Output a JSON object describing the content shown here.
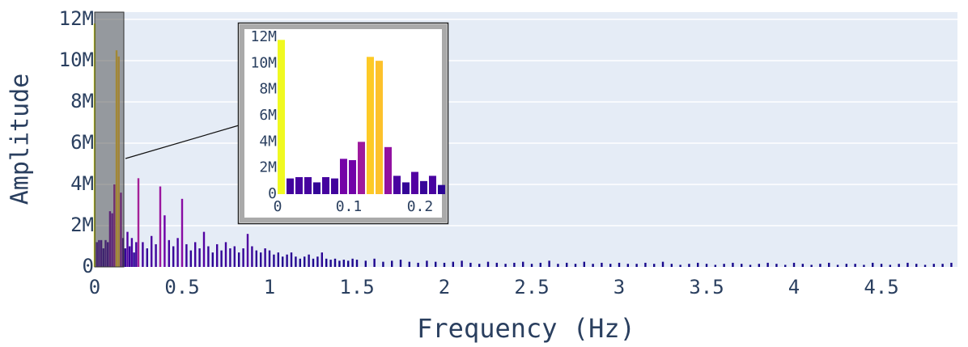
{
  "chart_data": [
    {
      "type": "bar",
      "xlabel": "Frequency (Hz)",
      "ylabel": "Amplitude",
      "colorscale": [
        "#0d0887",
        "#46039f",
        "#7201a8",
        "#9c179e",
        "#bd3786",
        "#d8576b",
        "#ed7953",
        "#fb9f3a",
        "#fdca26",
        "#f0f921"
      ],
      "x": [
        0,
        0.0125,
        0.025,
        0.0375,
        0.05,
        0.0625,
        0.075,
        0.0875,
        0.1,
        0.1125,
        0.125,
        0.1375,
        0.15,
        0.1625,
        0.175,
        0.1875,
        0.2,
        0.2125,
        0.225,
        0.2375,
        0.25,
        0.275,
        0.3,
        0.325,
        0.35,
        0.375,
        0.4,
        0.425,
        0.45,
        0.475,
        0.5,
        0.525,
        0.55,
        0.575,
        0.6,
        0.625,
        0.65,
        0.675,
        0.7,
        0.725,
        0.75,
        0.775,
        0.8,
        0.825,
        0.85,
        0.875,
        0.9,
        0.925,
        0.95,
        0.975,
        1,
        1.025,
        1.05,
        1.075,
        1.1,
        1.125,
        1.15,
        1.175,
        1.2,
        1.225,
        1.25,
        1.275,
        1.3,
        1.325,
        1.35,
        1.375,
        1.4,
        1.425,
        1.45,
        1.475,
        1.5,
        1.55,
        1.6,
        1.65,
        1.7,
        1.75,
        1.8,
        1.85,
        1.9,
        1.95,
        2,
        2.05,
        2.1,
        2.15,
        2.2,
        2.25,
        2.3,
        2.35,
        2.4,
        2.45,
        2.5,
        2.55,
        2.6,
        2.65,
        2.7,
        2.75,
        2.8,
        2.85,
        2.9,
        2.95,
        3,
        3.05,
        3.1,
        3.15,
        3.2,
        3.25,
        3.3,
        3.35,
        3.4,
        3.45,
        3.5,
        3.55,
        3.6,
        3.65,
        3.7,
        3.75,
        3.8,
        3.85,
        3.9,
        3.95,
        4,
        4.05,
        4.1,
        4.15,
        4.2,
        4.25,
        4.3,
        4.35,
        4.4,
        4.45,
        4.5,
        4.55,
        4.6,
        4.65,
        4.7,
        4.75,
        4.8,
        4.85,
        4.9
      ],
      "values": [
        11800000,
        1200000,
        1300000,
        1300000,
        900000,
        1300000,
        1200000,
        2700000,
        2600000,
        4000000,
        10500000,
        10200000,
        3600000,
        1400000,
        900000,
        1700000,
        1000000,
        1400000,
        700000,
        1200000,
        4300000,
        1200000,
        900000,
        1500000,
        1100000,
        3900000,
        2500000,
        1300000,
        1000000,
        1400000,
        3300000,
        1100000,
        800000,
        1200000,
        900000,
        1700000,
        1000000,
        700000,
        1100000,
        800000,
        1200000,
        900000,
        1000000,
        700000,
        900000,
        1600000,
        1000000,
        800000,
        700000,
        900000,
        800000,
        600000,
        700000,
        500000,
        600000,
        700000,
        500000,
        400000,
        500000,
        600000,
        400000,
        500000,
        700000,
        400000,
        350000,
        400000,
        300000,
        350000,
        300000,
        400000,
        350000,
        300000,
        400000,
        250000,
        300000,
        350000,
        250000,
        200000,
        300000,
        250000,
        200000,
        250000,
        300000,
        200000,
        150000,
        250000,
        200000,
        150000,
        200000,
        250000,
        150000,
        200000,
        300000,
        150000,
        200000,
        150000,
        250000,
        150000,
        200000,
        150000,
        200000,
        150000,
        150000,
        200000,
        150000,
        250000,
        150000,
        100000,
        150000,
        200000,
        150000,
        100000,
        150000,
        200000,
        150000,
        100000,
        150000,
        200000,
        150000,
        100000,
        200000,
        150000,
        100000,
        150000,
        200000,
        100000,
        150000,
        150000,
        100000,
        200000,
        150000,
        100000,
        150000,
        200000,
        150000,
        100000,
        150000,
        150000,
        200000
      ],
      "xlim": [
        0,
        4.935
      ],
      "ylim": [
        0,
        12350000
      ],
      "xticks": [
        0,
        0.5,
        1,
        1.5,
        2,
        2.5,
        3,
        3.5,
        4,
        4.5
      ],
      "yticks": [
        0,
        {
          "value": 2000000,
          "label": "2M"
        },
        {
          "value": 4000000,
          "label": "4M"
        },
        {
          "value": 6000000,
          "label": "6M"
        },
        {
          "value": 8000000,
          "label": "8M"
        },
        {
          "value": 10000000,
          "label": "10M"
        },
        {
          "value": 12000000,
          "label": "12M"
        }
      ],
      "grid": true
    },
    {
      "type": "bar",
      "colorscale": [
        "#0d0887",
        "#46039f",
        "#7201a8",
        "#9c179e",
        "#bd3786",
        "#d8576b",
        "#ed7953",
        "#fb9f3a",
        "#fdca26",
        "#f0f921"
      ],
      "x": [
        0,
        0.0125,
        0.025,
        0.0375,
        0.05,
        0.0625,
        0.075,
        0.0875,
        0.1,
        0.1125,
        0.125,
        0.1375,
        0.15,
        0.1625,
        0.175,
        0.1875,
        0.2,
        0.2125,
        0.225
      ],
      "values": [
        11800000,
        1200000,
        1300000,
        1300000,
        900000,
        1300000,
        1200000,
        2700000,
        2600000,
        4000000,
        10500000,
        10200000,
        3600000,
        1400000,
        900000,
        1700000,
        1000000,
        1400000,
        700000
      ],
      "xlim": [
        0,
        0.233
      ],
      "ylim": [
        0,
        12500000
      ],
      "xticks": [
        0,
        0.1,
        0.2
      ],
      "yticks": [
        0,
        {
          "value": 2000000,
          "label": "2M"
        },
        {
          "value": 4000000,
          "label": "4M"
        },
        {
          "value": 6000000,
          "label": "6M"
        },
        {
          "value": 8000000,
          "label": "8M"
        },
        {
          "value": 10000000,
          "label": "10M"
        },
        {
          "value": 12000000,
          "label": "12M"
        }
      ],
      "grid": false
    }
  ]
}
